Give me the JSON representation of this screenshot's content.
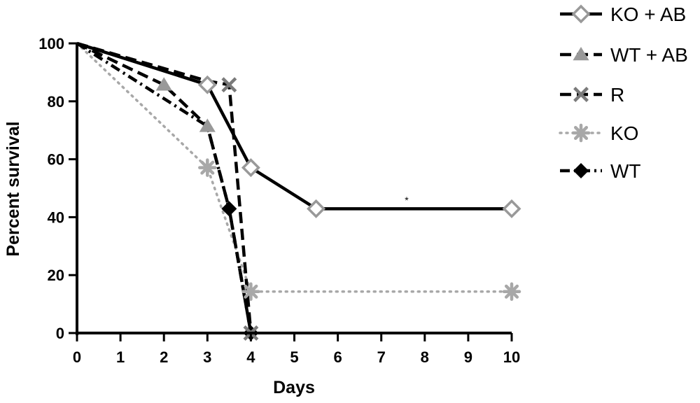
{
  "chart_data": {
    "type": "line",
    "title": "",
    "xlabel": "Days",
    "ylabel": "Percent survival",
    "xlim": [
      0,
      10
    ],
    "ylim": [
      0,
      100
    ],
    "x_ticks": [
      0,
      1,
      2,
      3,
      4,
      5,
      6,
      7,
      8,
      9,
      10
    ],
    "y_ticks": [
      0,
      20,
      40,
      60,
      80,
      100
    ],
    "grid": false,
    "legend_position": "top-right, outside plot",
    "annotations": [
      {
        "text": "*",
        "x": 7.65,
        "y": 46
      }
    ],
    "series": [
      {
        "name": "KO + AB",
        "marker": "open-diamond",
        "line_style": "solid",
        "color": "#000000",
        "marker_color": "#999999",
        "points": [
          [
            0,
            100
          ],
          [
            3,
            85.7
          ],
          [
            4,
            57.1
          ],
          [
            5.5,
            42.9
          ],
          [
            10,
            42.9
          ]
        ],
        "markers_at": [
          [
            3,
            85.7
          ],
          [
            4,
            57.1
          ],
          [
            5.5,
            42.9
          ],
          [
            10,
            42.9
          ]
        ]
      },
      {
        "name": "WT + AB",
        "marker": "triangle",
        "line_style": "dashed",
        "color": "#000000",
        "marker_color": "#999999",
        "points": [
          [
            0,
            100
          ],
          [
            2,
            85.7
          ],
          [
            3,
            71.4
          ],
          [
            3.5,
            42.9
          ],
          [
            4,
            0
          ]
        ],
        "markers_at": [
          [
            2,
            85.7
          ],
          [
            3,
            71.4
          ]
        ]
      },
      {
        "name": "R",
        "marker": "x",
        "line_style": "dashed",
        "color": "#000000",
        "marker_color": "#7a7a7a",
        "points": [
          [
            0,
            100
          ],
          [
            3,
            87
          ],
          [
            3.5,
            85.7
          ],
          [
            4,
            0
          ]
        ],
        "markers_at": [
          [
            3.5,
            85.7
          ],
          [
            4,
            0
          ]
        ]
      },
      {
        "name": "KO",
        "marker": "asterisk",
        "line_style": "dotted",
        "color": "#a8a8a8",
        "marker_color": "#a8a8a8",
        "points": [
          [
            0,
            100
          ],
          [
            3,
            57.1
          ],
          [
            4,
            14.3
          ],
          [
            10,
            14.3
          ]
        ],
        "markers_at": [
          [
            3,
            57.1
          ],
          [
            4,
            14.3
          ],
          [
            10,
            14.3
          ]
        ]
      },
      {
        "name": "WT",
        "marker": "filled-diamond",
        "line_style": "dash-dot",
        "color": "#000000",
        "marker_color": "#000000",
        "points": [
          [
            0,
            100
          ],
          [
            3,
            71.4
          ],
          [
            3.5,
            42.9
          ],
          [
            4,
            0
          ]
        ],
        "markers_at": [
          [
            3.5,
            42.9
          ],
          [
            4,
            0
          ]
        ]
      }
    ]
  }
}
